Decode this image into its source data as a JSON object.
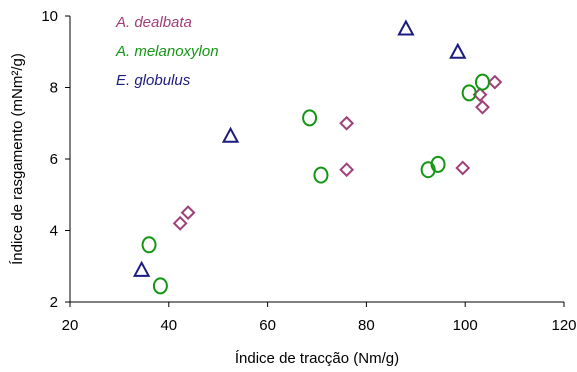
{
  "chart_data": {
    "type": "scatter",
    "title": "",
    "xlabel": "Índice de tracção (Nm/g)",
    "ylabel": "Índice de rasgamento (mNm²/g)",
    "xlim": [
      20,
      120
    ],
    "ylim": [
      2,
      10
    ],
    "x_ticks": [
      "20",
      "40",
      "60",
      "80",
      "100",
      "120"
    ],
    "y_ticks": [
      "2",
      "4",
      "6",
      "8",
      "10"
    ],
    "grid": false,
    "legend_position": "top-left",
    "series": [
      {
        "name": "A. dealbata",
        "marker": "diamond",
        "color": "#a0407a",
        "points": [
          {
            "x": 42.3,
            "y": 4.2
          },
          {
            "x": 43.9,
            "y": 4.5
          },
          {
            "x": 76.0,
            "y": 7.0
          },
          {
            "x": 76.0,
            "y": 5.7
          },
          {
            "x": 99.5,
            "y": 5.75
          },
          {
            "x": 103.0,
            "y": 7.8
          },
          {
            "x": 103.5,
            "y": 7.45
          },
          {
            "x": 106.0,
            "y": 8.15
          }
        ]
      },
      {
        "name": "A. melanoxylon",
        "marker": "circle",
        "color": "#149614",
        "points": [
          {
            "x": 36.0,
            "y": 3.6
          },
          {
            "x": 38.3,
            "y": 2.45
          },
          {
            "x": 68.5,
            "y": 7.15
          },
          {
            "x": 70.8,
            "y": 5.55
          },
          {
            "x": 92.5,
            "y": 5.7
          },
          {
            "x": 94.5,
            "y": 5.85
          },
          {
            "x": 100.8,
            "y": 7.85
          },
          {
            "x": 103.5,
            "y": 8.15
          }
        ]
      },
      {
        "name": "E. globulus",
        "marker": "triangle",
        "color": "#1c1c80",
        "points": [
          {
            "x": 34.5,
            "y": 2.9
          },
          {
            "x": 52.5,
            "y": 6.65
          },
          {
            "x": 88.0,
            "y": 9.65
          },
          {
            "x": 98.5,
            "y": 9.0
          }
        ]
      }
    ]
  }
}
